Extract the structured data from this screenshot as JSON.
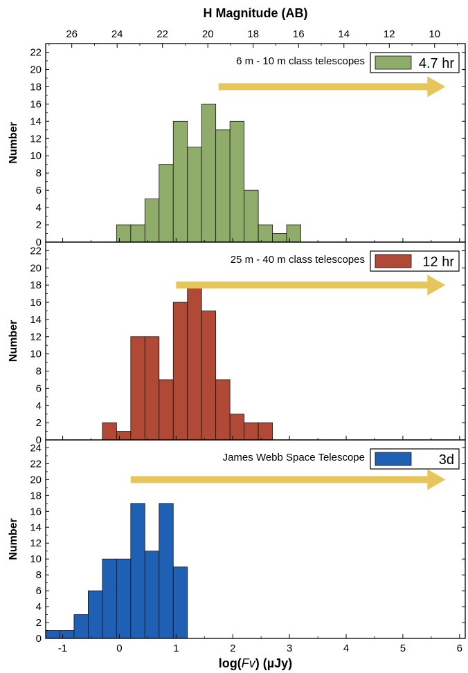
{
  "figure": {
    "top_axis_label": "H Magnitude (AB)",
    "top_ticks": [
      "26",
      "24",
      "22",
      "20",
      "18",
      "16",
      "14",
      "12",
      "10"
    ],
    "xlabel_prefix": "log(",
    "xlabel_var": "Fv",
    "xlabel_suffix": ") (µJy)",
    "x_ticks": [
      "-1",
      "0",
      "1",
      "2",
      "3",
      "4",
      "5",
      "6"
    ],
    "arrow_color": "#e6c55a"
  },
  "chart_data": [
    {
      "type": "bar",
      "panel": "top",
      "label": "6 m - 10 m class telescopes",
      "legend": "4.7 hr",
      "color": "#8fac6a",
      "ylabel": "Number",
      "ylim": [
        0,
        23
      ],
      "y_ticks": [
        "0",
        "2",
        "4",
        "6",
        "8",
        "10",
        "12",
        "14",
        "16",
        "18",
        "20",
        "22"
      ],
      "xlim": [
        -1.3,
        6.1
      ],
      "bin_width": 0.25,
      "arrow_x": [
        1.75,
        5.75
      ],
      "arrow_y": 18,
      "bins": [
        {
          "x": -0.05,
          "count": 2
        },
        {
          "x": 0.2,
          "count": 2
        },
        {
          "x": 0.45,
          "count": 5
        },
        {
          "x": 0.7,
          "count": 9
        },
        {
          "x": 0.95,
          "count": 14
        },
        {
          "x": 1.2,
          "count": 11
        },
        {
          "x": 1.45,
          "count": 16
        },
        {
          "x": 1.7,
          "count": 13
        },
        {
          "x": 1.95,
          "count": 14
        },
        {
          "x": 2.2,
          "count": 6
        },
        {
          "x": 2.45,
          "count": 2
        },
        {
          "x": 2.7,
          "count": 1
        },
        {
          "x": 2.95,
          "count": 2
        }
      ]
    },
    {
      "type": "bar",
      "panel": "middle",
      "label": "25 m - 40 m class telescopes",
      "legend": "12 hr",
      "color": "#b04a36",
      "ylabel": "Number",
      "ylim": [
        0,
        23
      ],
      "y_ticks": [
        "0",
        "2",
        "4",
        "6",
        "8",
        "10",
        "12",
        "14",
        "16",
        "18",
        "20",
        "22"
      ],
      "xlim": [
        -1.3,
        6.1
      ],
      "bin_width": 0.25,
      "arrow_x": [
        1.0,
        5.75
      ],
      "arrow_y": 18,
      "bins": [
        {
          "x": -0.3,
          "count": 2
        },
        {
          "x": -0.05,
          "count": 1
        },
        {
          "x": 0.2,
          "count": 12
        },
        {
          "x": 0.45,
          "count": 12
        },
        {
          "x": 0.7,
          "count": 7
        },
        {
          "x": 0.95,
          "count": 16
        },
        {
          "x": 1.2,
          "count": 18
        },
        {
          "x": 1.45,
          "count": 15
        },
        {
          "x": 1.7,
          "count": 7
        },
        {
          "x": 1.95,
          "count": 3
        },
        {
          "x": 2.2,
          "count": 2
        },
        {
          "x": 2.45,
          "count": 2
        }
      ]
    },
    {
      "type": "bar",
      "panel": "bottom",
      "label": "James Webb Space Telescope",
      "legend": "3d",
      "color": "#2060b4",
      "ylabel": "Number",
      "ylim": [
        0,
        25
      ],
      "y_ticks": [
        "0",
        "2",
        "4",
        "6",
        "8",
        "10",
        "12",
        "14",
        "16",
        "18",
        "20",
        "22",
        "24"
      ],
      "xlim": [
        -1.3,
        6.1
      ],
      "bin_width": 0.25,
      "arrow_x": [
        0.2,
        5.75
      ],
      "arrow_y": 20,
      "bins": [
        {
          "x": -1.3,
          "count": 1
        },
        {
          "x": -1.05,
          "count": 1
        },
        {
          "x": -0.8,
          "count": 3
        },
        {
          "x": -0.55,
          "count": 6
        },
        {
          "x": -0.3,
          "count": 10
        },
        {
          "x": -0.05,
          "count": 10
        },
        {
          "x": 0.2,
          "count": 17
        },
        {
          "x": 0.45,
          "count": 11
        },
        {
          "x": 0.7,
          "count": 17
        },
        {
          "x": 0.95,
          "count": 9
        }
      ]
    }
  ]
}
